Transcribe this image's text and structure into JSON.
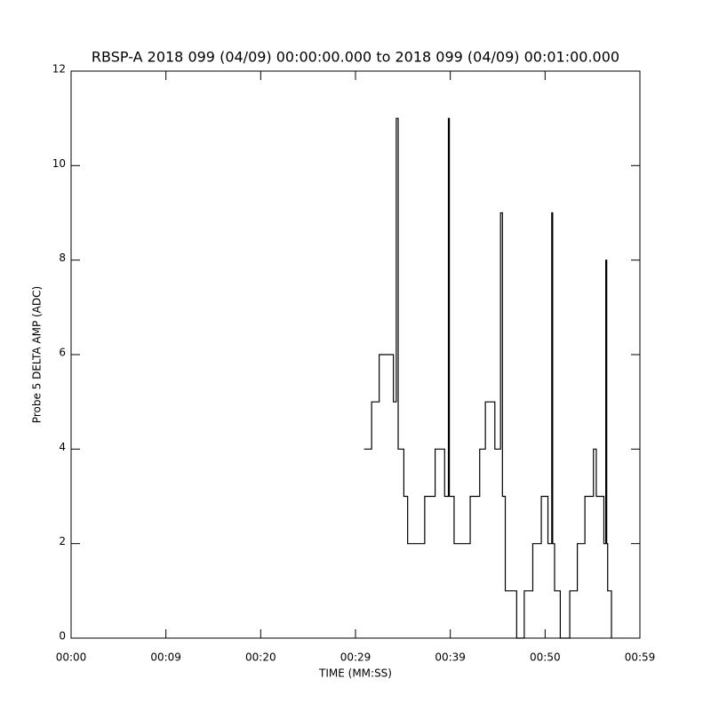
{
  "chart_data": {
    "type": "line",
    "title": "RBSP-A 2018 099 (04/09) 00:00:00.000 to 2018 099 (04/09) 00:01:00.000",
    "xlabel": "TIME (MM:SS)",
    "ylabel": "Probe 5 DELTA AMP (ADC)",
    "xlim": [
      0,
      60
    ],
    "xticks": [
      {
        "value": 0,
        "label": "00:00"
      },
      {
        "value": 10,
        "label": "00:09"
      },
      {
        "value": 20,
        "label": "00:20"
      },
      {
        "value": 30,
        "label": "00:29"
      },
      {
        "value": 40,
        "label": "00:39"
      },
      {
        "value": 50,
        "label": "00:50"
      },
      {
        "value": 60,
        "label": "00:59"
      }
    ],
    "ylim": [
      0,
      12
    ],
    "yticks": [
      0,
      2,
      4,
      6,
      8,
      10,
      12
    ],
    "series": [
      {
        "color": "#000000",
        "x": [
          30.9,
          31.7,
          31.7,
          32.5,
          32.5,
          34.0,
          34.0,
          34.3,
          34.3,
          34.5,
          34.5,
          35.1,
          35.1,
          35.5,
          35.5,
          37.3,
          37.3,
          38.4,
          38.4,
          39.4,
          39.4,
          39.8,
          39.8,
          39.9,
          39.9,
          40.4,
          40.4,
          42.1,
          42.1,
          43.1,
          43.1,
          43.7,
          43.7,
          44.7,
          44.7,
          45.3,
          45.3,
          45.5,
          45.5,
          45.8,
          45.8,
          47.0,
          47.0,
          47.8,
          47.8,
          48.7,
          48.7,
          49.6,
          49.6,
          50.3,
          50.3,
          50.7,
          50.7,
          50.8,
          50.8,
          51.0,
          51.0,
          51.6,
          51.6,
          52.6,
          52.6,
          53.4,
          53.4,
          54.2,
          54.2,
          55.1,
          55.1,
          55.4,
          55.4,
          56.2,
          56.2,
          56.4,
          56.4,
          56.5,
          56.5,
          56.6,
          56.6,
          57.0,
          57.0
        ],
        "values": [
          4,
          4,
          5,
          5,
          6,
          6,
          5,
          5,
          11,
          11,
          4,
          4,
          3,
          3,
          2,
          2,
          3,
          3,
          4,
          4,
          3,
          3,
          11,
          11,
          3,
          3,
          2,
          2,
          3,
          3,
          4,
          4,
          5,
          5,
          4,
          4,
          9,
          9,
          3,
          3,
          1,
          1,
          0,
          0,
          1,
          1,
          2,
          2,
          3,
          3,
          2,
          2,
          9,
          9,
          2,
          2,
          1,
          1,
          0,
          0,
          1,
          1,
          2,
          2,
          3,
          3,
          4,
          4,
          3,
          3,
          2,
          2,
          8,
          8,
          2,
          2,
          1,
          1,
          0
        ]
      }
    ]
  }
}
